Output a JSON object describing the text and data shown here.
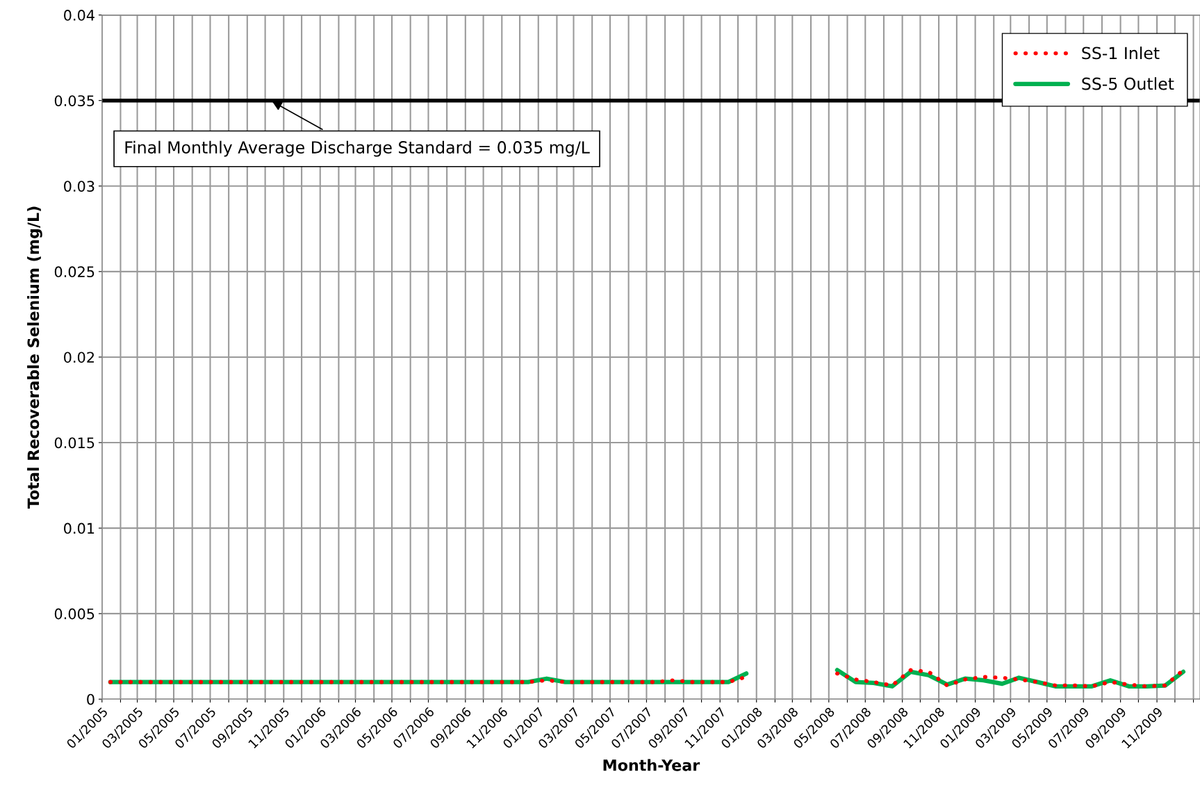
{
  "chart_data": {
    "type": "line",
    "xlabel": "Month-Year",
    "ylabel": "Total Recoverable Selenium (mg/L)",
    "x": [
      "2005-01-15",
      "2005-02-15",
      "2005-03-15",
      "2005-04-15",
      "2005-05-15",
      "2005-06-15",
      "2005-07-15",
      "2005-08-15",
      "2005-09-15",
      "2005-10-15",
      "2005-11-15",
      "2005-12-15",
      "2006-01-15",
      "2006-02-15",
      "2006-03-15",
      "2006-04-15",
      "2006-05-15",
      "2006-06-15",
      "2006-07-15",
      "2006-08-15",
      "2006-09-15",
      "2006-10-15",
      "2006-11-15",
      "2006-12-15",
      "2007-01-15",
      "2007-02-15",
      "2007-03-15",
      "2007-04-15",
      "2007-05-15",
      "2007-06-15",
      "2007-07-15",
      "2007-08-15",
      "2007-09-15",
      "2007-10-15",
      "2007-11-15",
      "2007-12-15",
      "2008-01-15",
      "2008-02-15",
      "2008-03-15",
      "2008-04-15",
      "2008-05-15",
      "2008-06-15",
      "2008-07-15",
      "2008-08-15",
      "2008-09-15",
      "2008-10-15",
      "2008-11-15",
      "2008-12-15",
      "2009-01-15",
      "2009-02-15",
      "2009-03-15",
      "2009-04-15",
      "2009-05-15",
      "2009-06-15",
      "2009-07-15",
      "2009-08-15",
      "2009-09-15",
      "2009-10-15",
      "2009-11-15",
      "2009-12-15"
    ],
    "series": [
      {
        "name": "SS-1 Inlet",
        "color": "#ff0000",
        "line_style": "dotted",
        "values": [
          0.001,
          0.001,
          0.001,
          0.001,
          0.001,
          0.001,
          0.001,
          0.001,
          0.001,
          0.001,
          0.001,
          0.001,
          0.001,
          0.001,
          0.001,
          0.001,
          0.001,
          0.001,
          0.001,
          0.001,
          0.001,
          0.001,
          0.001,
          0.001,
          0.0011,
          0.001,
          0.001,
          0.001,
          0.001,
          0.001,
          0.001,
          0.0011,
          0.001,
          0.001,
          0.001,
          0.0013,
          null,
          null,
          null,
          null,
          0.0015,
          0.00115,
          0.001,
          0.0008,
          0.0017,
          0.0016,
          0.0008,
          0.00115,
          0.0013,
          0.00125,
          0.00115,
          0.001,
          0.0008,
          0.0008,
          0.00075,
          0.001,
          0.00085,
          0.00075,
          0.0008,
          0.0017
        ]
      },
      {
        "name": "SS-5 Outlet",
        "color": "#00b050",
        "line_style": "solid",
        "values": [
          0.001,
          0.001,
          0.001,
          0.001,
          0.001,
          0.001,
          0.001,
          0.001,
          0.001,
          0.001,
          0.001,
          0.001,
          0.001,
          0.001,
          0.001,
          0.001,
          0.001,
          0.001,
          0.001,
          0.001,
          0.001,
          0.001,
          0.001,
          0.001,
          0.0012,
          0.001,
          0.001,
          0.001,
          0.001,
          0.001,
          0.001,
          0.001,
          0.001,
          0.001,
          0.001,
          0.0015,
          null,
          null,
          null,
          null,
          0.0017,
          0.001,
          0.00095,
          0.00075,
          0.0016,
          0.0014,
          0.00085,
          0.0012,
          0.0011,
          0.0009,
          0.00125,
          0.001,
          0.00075,
          0.00075,
          0.00075,
          0.0011,
          0.00075,
          0.00075,
          0.0008,
          0.0016
        ]
      }
    ],
    "xlim": [
      "2005-01-01",
      "2010-01-12"
    ],
    "xticks": [
      {
        "value": "2005-01-01",
        "label": "01/2005"
      },
      {
        "value": "2005-02-01",
        "label": null
      },
      {
        "value": "2005-03-01",
        "label": "03/2005"
      },
      {
        "value": "2005-04-01",
        "label": null
      },
      {
        "value": "2005-05-01",
        "label": "05/2005"
      },
      {
        "value": "2005-06-01",
        "label": null
      },
      {
        "value": "2005-07-01",
        "label": "07/2005"
      },
      {
        "value": "2005-08-01",
        "label": null
      },
      {
        "value": "2005-09-01",
        "label": "09/2005"
      },
      {
        "value": "2005-10-01",
        "label": null
      },
      {
        "value": "2005-11-01",
        "label": "11/2005"
      },
      {
        "value": "2005-12-01",
        "label": null
      },
      {
        "value": "2006-01-01",
        "label": "01/2006"
      },
      {
        "value": "2006-02-01",
        "label": null
      },
      {
        "value": "2006-03-01",
        "label": "03/2006"
      },
      {
        "value": "2006-04-01",
        "label": null
      },
      {
        "value": "2006-05-01",
        "label": "05/2006"
      },
      {
        "value": "2006-06-01",
        "label": null
      },
      {
        "value": "2006-07-01",
        "label": "07/2006"
      },
      {
        "value": "2006-08-01",
        "label": null
      },
      {
        "value": "2006-09-01",
        "label": "09/2006"
      },
      {
        "value": "2006-10-01",
        "label": null
      },
      {
        "value": "2006-11-01",
        "label": "11/2006"
      },
      {
        "value": "2006-12-01",
        "label": null
      },
      {
        "value": "2007-01-01",
        "label": "01/2007"
      },
      {
        "value": "2007-02-01",
        "label": null
      },
      {
        "value": "2007-03-01",
        "label": "03/2007"
      },
      {
        "value": "2007-04-01",
        "label": null
      },
      {
        "value": "2007-05-01",
        "label": "05/2007"
      },
      {
        "value": "2007-06-01",
        "label": null
      },
      {
        "value": "2007-07-01",
        "label": "07/2007"
      },
      {
        "value": "2007-08-01",
        "label": null
      },
      {
        "value": "2007-09-01",
        "label": "09/2007"
      },
      {
        "value": "2007-10-01",
        "label": null
      },
      {
        "value": "2007-11-01",
        "label": "11/2007"
      },
      {
        "value": "2007-12-01",
        "label": null
      },
      {
        "value": "2008-01-01",
        "label": "01/2008"
      },
      {
        "value": "2008-02-01",
        "label": null
      },
      {
        "value": "2008-03-01",
        "label": "03/2008"
      },
      {
        "value": "2008-04-01",
        "label": null
      },
      {
        "value": "2008-05-01",
        "label": "05/2008"
      },
      {
        "value": "2008-06-01",
        "label": null
      },
      {
        "value": "2008-07-01",
        "label": "07/2008"
      },
      {
        "value": "2008-08-01",
        "label": null
      },
      {
        "value": "2008-09-01",
        "label": "09/2008"
      },
      {
        "value": "2008-10-01",
        "label": null
      },
      {
        "value": "2008-11-01",
        "label": "11/2008"
      },
      {
        "value": "2008-12-01",
        "label": null
      },
      {
        "value": "2009-01-01",
        "label": "01/2009"
      },
      {
        "value": "2009-02-01",
        "label": null
      },
      {
        "value": "2009-03-01",
        "label": "03/2009"
      },
      {
        "value": "2009-04-01",
        "label": null
      },
      {
        "value": "2009-05-01",
        "label": "05/2009"
      },
      {
        "value": "2009-06-01",
        "label": null
      },
      {
        "value": "2009-07-01",
        "label": "07/2009"
      },
      {
        "value": "2009-08-01",
        "label": null
      },
      {
        "value": "2009-09-01",
        "label": "09/2009"
      },
      {
        "value": "2009-10-01",
        "label": null
      },
      {
        "value": "2009-11-01",
        "label": "11/2009"
      },
      {
        "value": "2009-12-01",
        "label": null
      },
      {
        "value": "2010-01-01",
        "label": null
      }
    ],
    "ylim": [
      0,
      0.04
    ],
    "yticks": [
      0,
      0.005,
      0.01,
      0.015,
      0.02,
      0.025,
      0.03,
      0.035,
      0.04
    ],
    "ref_lines": [
      {
        "axis": "y",
        "value": 0.035,
        "color": "#000000"
      }
    ],
    "annotations": [
      {
        "text": "Final Monthly Average Discharge Standard = 0.035 mg/L",
        "x": "2005-10-10",
        "y": 0.035
      }
    ],
    "grid": true,
    "legend": "top right",
    "marker": "none"
  }
}
